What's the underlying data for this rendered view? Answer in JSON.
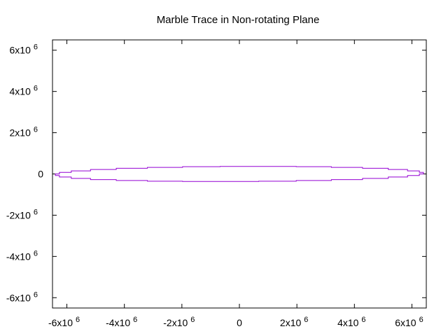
{
  "chart_data": {
    "type": "line",
    "title": "Marble Trace in Non-rotating Plane",
    "xlabel": "",
    "ylabel": "",
    "xlim": [
      -6500000,
      6500000
    ],
    "ylim": [
      -6500000,
      6500000
    ],
    "grid": false,
    "x_ticks": [
      {
        "value": -6000000,
        "mantissa": "-6x10",
        "exp": "6"
      },
      {
        "value": -4000000,
        "mantissa": "-4x10",
        "exp": "6"
      },
      {
        "value": -2000000,
        "mantissa": "-2x10",
        "exp": "6"
      },
      {
        "value": 0,
        "mantissa": "0",
        "exp": ""
      },
      {
        "value": 2000000,
        "mantissa": "2x10",
        "exp": "6"
      },
      {
        "value": 4000000,
        "mantissa": "4x10",
        "exp": "6"
      },
      {
        "value": 6000000,
        "mantissa": "6x10",
        "exp": "6"
      }
    ],
    "y_ticks": [
      {
        "value": 6000000,
        "mantissa": "6x10",
        "exp": "6"
      },
      {
        "value": 4000000,
        "mantissa": "4x10",
        "exp": "6"
      },
      {
        "value": 2000000,
        "mantissa": "2x10",
        "exp": "6"
      },
      {
        "value": 0,
        "mantissa": "0",
        "exp": ""
      },
      {
        "value": -2000000,
        "mantissa": "-2x10",
        "exp": "6"
      },
      {
        "value": -4000000,
        "mantissa": "-4x10",
        "exp": "6"
      },
      {
        "value": -6000000,
        "mantissa": "-6x10",
        "exp": "6"
      }
    ],
    "series": [
      {
        "color": "#9400d3",
        "shape": "closed ellipse",
        "semi_major_x": 6400000,
        "semi_minor_y": 370000,
        "center": [
          0,
          0
        ]
      }
    ]
  }
}
